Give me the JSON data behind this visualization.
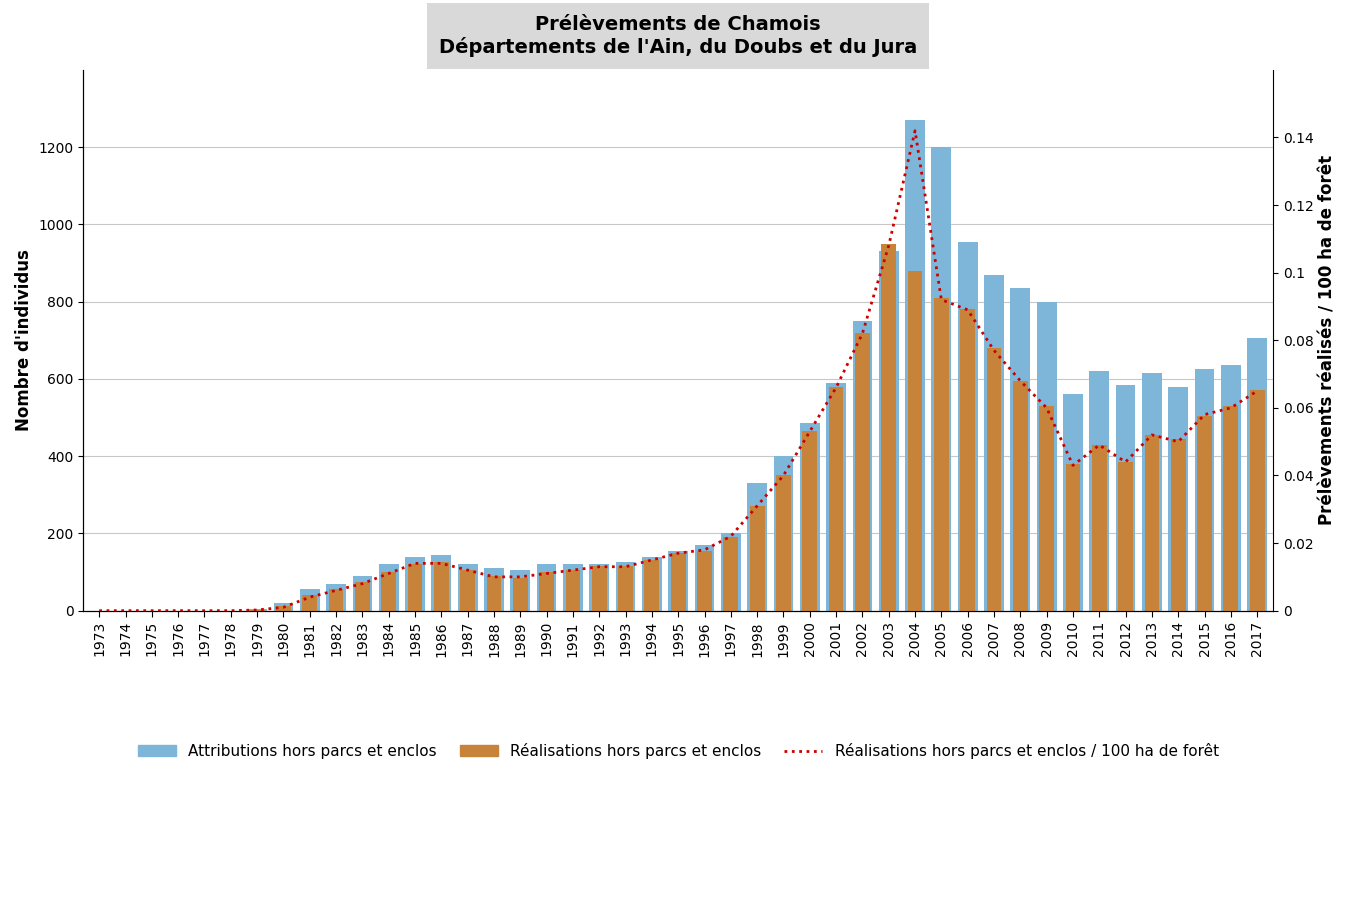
{
  "title_line1": "Prélèvements de Chamois",
  "title_line2": "Départements de l'Ain, du Doubs et du Jura",
  "ylabel_left": "Nombre d'individus",
  "ylabel_right": "Prélèvements réalisés / 100 ha de forêt",
  "years": [
    1973,
    1974,
    1975,
    1976,
    1977,
    1978,
    1979,
    1980,
    1981,
    1982,
    1983,
    1984,
    1985,
    1986,
    1987,
    1988,
    1989,
    1990,
    1991,
    1992,
    1993,
    1994,
    1995,
    1996,
    1997,
    1998,
    1999,
    2000,
    2001,
    2002,
    2003,
    2004,
    2005,
    2006,
    2007,
    2008,
    2009,
    2010,
    2011,
    2012,
    2013,
    2014,
    2015,
    2016,
    2017
  ],
  "attributions": [
    0,
    0,
    0,
    0,
    0,
    0,
    5,
    20,
    55,
    70,
    90,
    120,
    140,
    145,
    120,
    110,
    105,
    120,
    120,
    120,
    125,
    140,
    155,
    170,
    200,
    330,
    400,
    485,
    590,
    750,
    930,
    1270,
    1200,
    955,
    870,
    835,
    800,
    560,
    620,
    585,
    615,
    580,
    625,
    635,
    705
  ],
  "realisations": [
    0,
    0,
    0,
    0,
    0,
    0,
    2,
    12,
    40,
    55,
    75,
    100,
    120,
    125,
    105,
    90,
    85,
    100,
    105,
    115,
    115,
    130,
    150,
    155,
    190,
    270,
    350,
    465,
    580,
    720,
    950,
    880,
    810,
    780,
    680,
    595,
    530,
    380,
    430,
    385,
    455,
    445,
    505,
    530,
    570
  ],
  "ratio": [
    0,
    0,
    0,
    0,
    0,
    0,
    0.0002,
    0.001,
    0.004,
    0.006,
    0.008,
    0.011,
    0.014,
    0.014,
    0.012,
    0.01,
    0.01,
    0.011,
    0.012,
    0.013,
    0.013,
    0.015,
    0.017,
    0.018,
    0.022,
    0.031,
    0.04,
    0.053,
    0.066,
    0.082,
    0.108,
    0.142,
    0.092,
    0.089,
    0.077,
    0.068,
    0.06,
    0.043,
    0.049,
    0.044,
    0.052,
    0.05,
    0.058,
    0.06,
    0.065
  ],
  "bar_color_attr": "#7EB6D9",
  "bar_color_real": "#C8833A",
  "line_color_ratio": "#CC0000",
  "ylim_left": [
    0,
    1400
  ],
  "ylim_right": [
    0,
    0.16
  ],
  "yticks_left": [
    0,
    200,
    400,
    600,
    800,
    1000,
    1200
  ],
  "yticks_right": [
    0,
    0.02,
    0.04,
    0.06,
    0.08,
    0.1,
    0.12,
    0.14
  ],
  "ytick_right_labels": [
    "0",
    "0.02",
    "0.04",
    "0.06",
    "0.08",
    "0.1",
    "0.12",
    "0.14"
  ],
  "title_fontsize": 14,
  "axis_label_fontsize": 12,
  "tick_fontsize": 10,
  "legend_fontsize": 11,
  "title_bg_color": "#D9D9D9",
  "background_color": "#FFFFFF",
  "grid_color": "#C8C8C8"
}
